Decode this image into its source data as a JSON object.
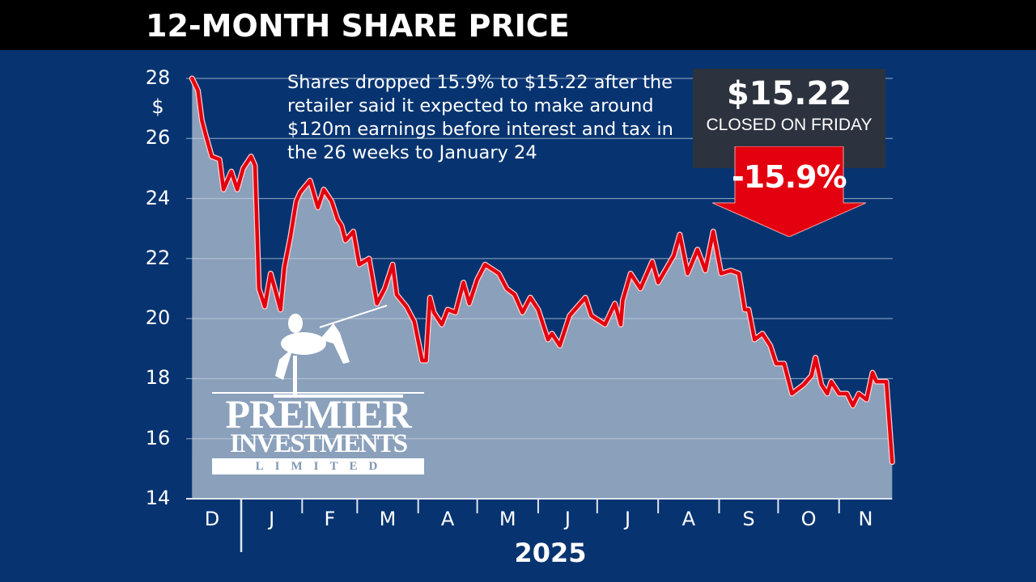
{
  "header": {
    "title": "12-MONTH SHARE PRICE"
  },
  "annotation": "Shares dropped 15.9% to $15.22 after the retailer said it expected to make around $120m earnings before interest and tax in the 26 weeks to January 24",
  "callout": {
    "price": "$15.22",
    "caption": "CLOSED ON FRIDAY",
    "change": "-15.9%"
  },
  "logo": {
    "line1": "PREMIER",
    "line2": "INVESTMENTS",
    "line3": "LIMITED"
  },
  "colors": {
    "background": "#073471",
    "area": "#8aa0bb",
    "line": "#e3000f",
    "callout_box": "#2c323e",
    "arrow": "#e3000f"
  },
  "chart_data": {
    "type": "area",
    "title": "12-MONTH SHARE PRICE",
    "ylabel": "$",
    "ylim": [
      14,
      28
    ],
    "yticks": [
      "28",
      "26",
      "24",
      "22",
      "20",
      "18",
      "16",
      "14"
    ],
    "xticks": [
      "D",
      "J",
      "F",
      "M",
      "A",
      "M",
      "J",
      "J",
      "A",
      "S",
      "O",
      "N"
    ],
    "xlabel": "2025",
    "grid": true,
    "series": [
      {
        "points": [
          [
            "2024-12-07",
            28.0
          ],
          [
            "2024-12-10",
            27.6
          ],
          [
            "2024-12-12",
            26.6
          ],
          [
            "2024-12-14",
            26.1
          ],
          [
            "2024-12-17",
            25.4
          ],
          [
            "2024-12-21",
            25.3
          ],
          [
            "2024-12-23",
            24.3
          ],
          [
            "2024-12-27",
            24.9
          ],
          [
            "2024-12-30",
            24.3
          ],
          [
            "2025-01-02",
            25.0
          ],
          [
            "2025-01-06",
            25.4
          ],
          [
            "2025-01-08",
            25.1
          ],
          [
            "2025-01-10",
            21.0
          ],
          [
            "2025-01-13",
            20.4
          ],
          [
            "2025-01-16",
            21.5
          ],
          [
            "2025-01-21",
            20.3
          ],
          [
            "2025-01-23",
            21.7
          ],
          [
            "2025-01-26",
            22.7
          ],
          [
            "2025-01-29",
            23.9
          ],
          [
            "2025-01-31",
            24.2
          ],
          [
            "2025-02-05",
            24.6
          ],
          [
            "2025-02-09",
            23.7
          ],
          [
            "2025-02-12",
            24.3
          ],
          [
            "2025-02-16",
            23.9
          ],
          [
            "2025-02-19",
            23.3
          ],
          [
            "2025-02-21",
            23.1
          ],
          [
            "2025-02-23",
            22.6
          ],
          [
            "2025-02-27",
            22.9
          ],
          [
            "2025-03-02",
            21.8
          ],
          [
            "2025-03-07",
            22.0
          ],
          [
            "2025-03-11",
            20.5
          ],
          [
            "2025-03-15",
            21.0
          ],
          [
            "2025-03-19",
            21.8
          ],
          [
            "2025-03-21",
            20.8
          ],
          [
            "2025-03-26",
            20.4
          ],
          [
            "2025-03-30",
            19.9
          ],
          [
            "2025-04-03",
            18.6
          ],
          [
            "2025-04-05",
            18.6
          ],
          [
            "2025-04-07",
            20.7
          ],
          [
            "2025-04-09",
            20.2
          ],
          [
            "2025-04-13",
            19.8
          ],
          [
            "2025-04-16",
            20.3
          ],
          [
            "2025-04-20",
            20.2
          ],
          [
            "2025-04-24",
            21.2
          ],
          [
            "2025-04-27",
            20.5
          ],
          [
            "2025-05-01",
            21.3
          ],
          [
            "2025-05-05",
            21.8
          ],
          [
            "2025-05-12",
            21.5
          ],
          [
            "2025-05-16",
            21.0
          ],
          [
            "2025-05-20",
            20.8
          ],
          [
            "2025-05-24",
            20.2
          ],
          [
            "2025-05-28",
            20.7
          ],
          [
            "2025-06-01",
            20.3
          ],
          [
            "2025-06-06",
            19.3
          ],
          [
            "2025-06-08",
            19.5
          ],
          [
            "2025-06-12",
            19.1
          ],
          [
            "2025-06-17",
            20.1
          ],
          [
            "2025-06-25",
            20.7
          ],
          [
            "2025-06-28",
            20.1
          ],
          [
            "2025-07-05",
            19.8
          ],
          [
            "2025-07-10",
            20.5
          ],
          [
            "2025-07-13",
            19.8
          ],
          [
            "2025-07-14",
            20.6
          ],
          [
            "2025-07-18",
            21.5
          ],
          [
            "2025-07-23",
            21.0
          ],
          [
            "2025-07-29",
            21.9
          ],
          [
            "2025-08-01",
            21.2
          ],
          [
            "2025-08-09",
            22.1
          ],
          [
            "2025-08-12",
            22.8
          ],
          [
            "2025-08-16",
            21.5
          ],
          [
            "2025-08-21",
            22.3
          ],
          [
            "2025-08-25",
            21.6
          ],
          [
            "2025-08-29",
            22.9
          ],
          [
            "2025-09-02",
            21.5
          ],
          [
            "2025-09-07",
            21.6
          ],
          [
            "2025-09-11",
            21.5
          ],
          [
            "2025-09-14",
            20.3
          ],
          [
            "2025-09-16",
            20.3
          ],
          [
            "2025-09-19",
            19.3
          ],
          [
            "2025-09-23",
            19.5
          ],
          [
            "2025-09-27",
            19.1
          ],
          [
            "2025-09-30",
            18.5
          ],
          [
            "2025-10-04",
            18.5
          ],
          [
            "2025-10-08",
            17.5
          ],
          [
            "2025-10-14",
            17.8
          ],
          [
            "2025-10-18",
            18.1
          ],
          [
            "2025-10-20",
            18.7
          ],
          [
            "2025-10-23",
            17.8
          ],
          [
            "2025-10-26",
            17.5
          ],
          [
            "2025-10-28",
            17.9
          ],
          [
            "2025-11-01",
            17.5
          ],
          [
            "2025-11-05",
            17.5
          ],
          [
            "2025-11-08",
            17.1
          ],
          [
            "2025-11-11",
            17.5
          ],
          [
            "2025-11-15",
            17.3
          ],
          [
            "2025-11-18",
            18.2
          ],
          [
            "2025-11-20",
            17.9
          ],
          [
            "2025-11-25",
            17.9
          ],
          [
            "2025-11-28",
            15.22
          ]
        ]
      }
    ]
  }
}
